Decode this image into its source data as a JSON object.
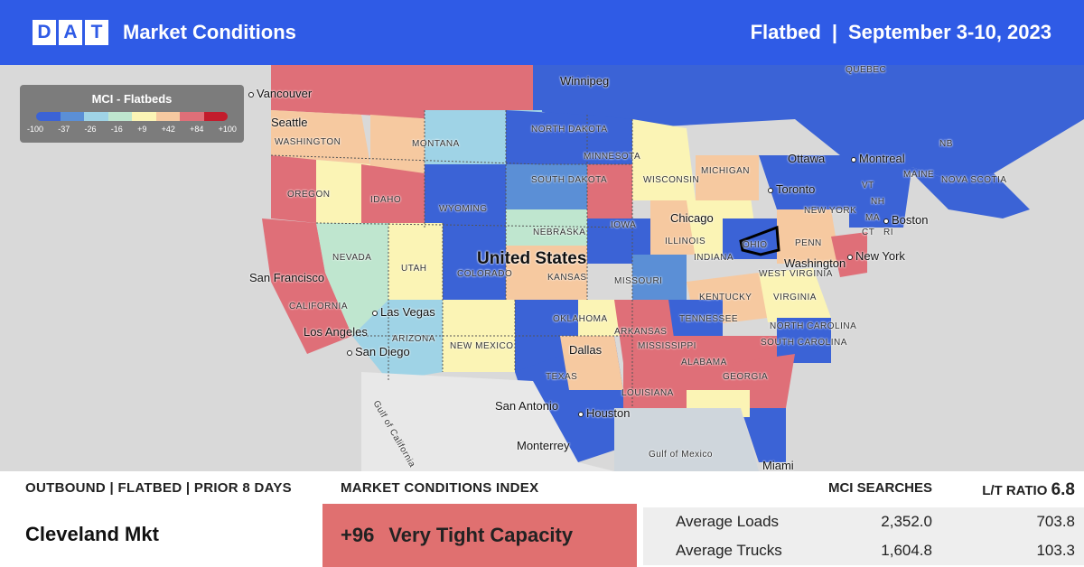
{
  "header": {
    "logo_letters": [
      "D",
      "A",
      "T"
    ],
    "title": "Market Conditions",
    "equipment": "Flatbed",
    "divider": "|",
    "date_range": "September 3-10, 2023"
  },
  "legend": {
    "title": "MCI - Flatbeds",
    "ticks": [
      "-100",
      "-37",
      "-26",
      "-16",
      "+9",
      "+42",
      "+84",
      "+100"
    ],
    "colors": [
      "#3b63d6",
      "#5b8fd6",
      "#9fd3e6",
      "#bfe6cf",
      "#fbf4b5",
      "#f6c9a0",
      "#df6f78",
      "#c21c2c"
    ]
  },
  "map": {
    "labels": {
      "vancouver": "Vancouver",
      "seattle": "Seattle",
      "washington_st": "WASHINGTON",
      "oregon": "OREGON",
      "idaho": "IDAHO",
      "montana": "MONTANA",
      "wyoming": "WYOMING",
      "north_dakota": "NORTH DAKOTA",
      "south_dakota": "SOUTH DAKOTA",
      "minnesota": "MINNESOTA",
      "winnipeg": "Winnipeg",
      "wisconsin": "WISCONSIN",
      "michigan": "MICHIGAN",
      "iowa": "IOWA",
      "nebraska": "NEBRASKA",
      "illinois": "ILLINOIS",
      "indiana": "INDIANA",
      "ohio": "OHIO",
      "penn": "PENN",
      "chicago": "Chicago",
      "toronto": "Toronto",
      "ottawa": "Ottawa",
      "montreal": "Montreal",
      "quebec": "QUÉBEC",
      "maine": "MAINE",
      "nb": "NB",
      "nova_scotia": "NOVA SCOTIA",
      "vt": "VT",
      "nh": "NH",
      "ma": "MA",
      "ct": "CT",
      "ri": "RI",
      "boston": "Boston",
      "new_york_st": "NEW YORK",
      "new_york": "New York",
      "washington_dc": "Washington",
      "united_states": "United States",
      "nevada": "NEVADA",
      "utah": "UTAH",
      "colorado": "COLORADO",
      "kansas": "KANSAS",
      "missouri": "MISSOURI",
      "kentucky": "KENTUCKY",
      "west_virginia": "WEST VIRGINIA",
      "virginia": "VIRGINIA",
      "san_francisco": "San Francisco",
      "california": "CALIFORNIA",
      "las_vegas": "Las Vegas",
      "los_angeles": "Los Angeles",
      "san_diego": "San Diego",
      "arizona": "ARIZONA",
      "new_mexico": "NEW MEXICO",
      "oklahoma": "OKLAHOMA",
      "arkansas": "ARKANSAS",
      "tennessee": "TENNESSEE",
      "north_carolina": "NORTH CAROLINA",
      "south_carolina": "SOUTH CAROLINA",
      "mississippi": "MISSISSIPPI",
      "alabama": "ALABAMA",
      "georgia": "GEORGIA",
      "dallas": "Dallas",
      "texas": "TEXAS",
      "louisiana": "LOUISIANA",
      "san_antonio": "San Antonio",
      "houston": "Houston",
      "monterrey": "Monterrey",
      "gulf_of_california": "Gulf of California",
      "gulf_of_mexico": "Gulf of Mexico",
      "miami": "Miami"
    }
  },
  "outbound": {
    "title": "OUTBOUND | FLATBED | PRIOR 8 DAYS",
    "market": "Cleveland Mkt"
  },
  "mci": {
    "title": "MARKET CONDITIONS INDEX",
    "value": "+96",
    "status": "Very Tight Capacity",
    "color": "#e07070"
  },
  "stats": {
    "col1_header": "MCI SEARCHES",
    "col2_header_label": "L/T RATIO",
    "col2_header_value": "6.8",
    "rows": [
      {
        "label": "Average Loads",
        "searches": "2,352.0",
        "ratio": "703.8"
      },
      {
        "label": "Average Trucks",
        "searches": "1,604.8",
        "ratio": "103.3"
      }
    ]
  }
}
